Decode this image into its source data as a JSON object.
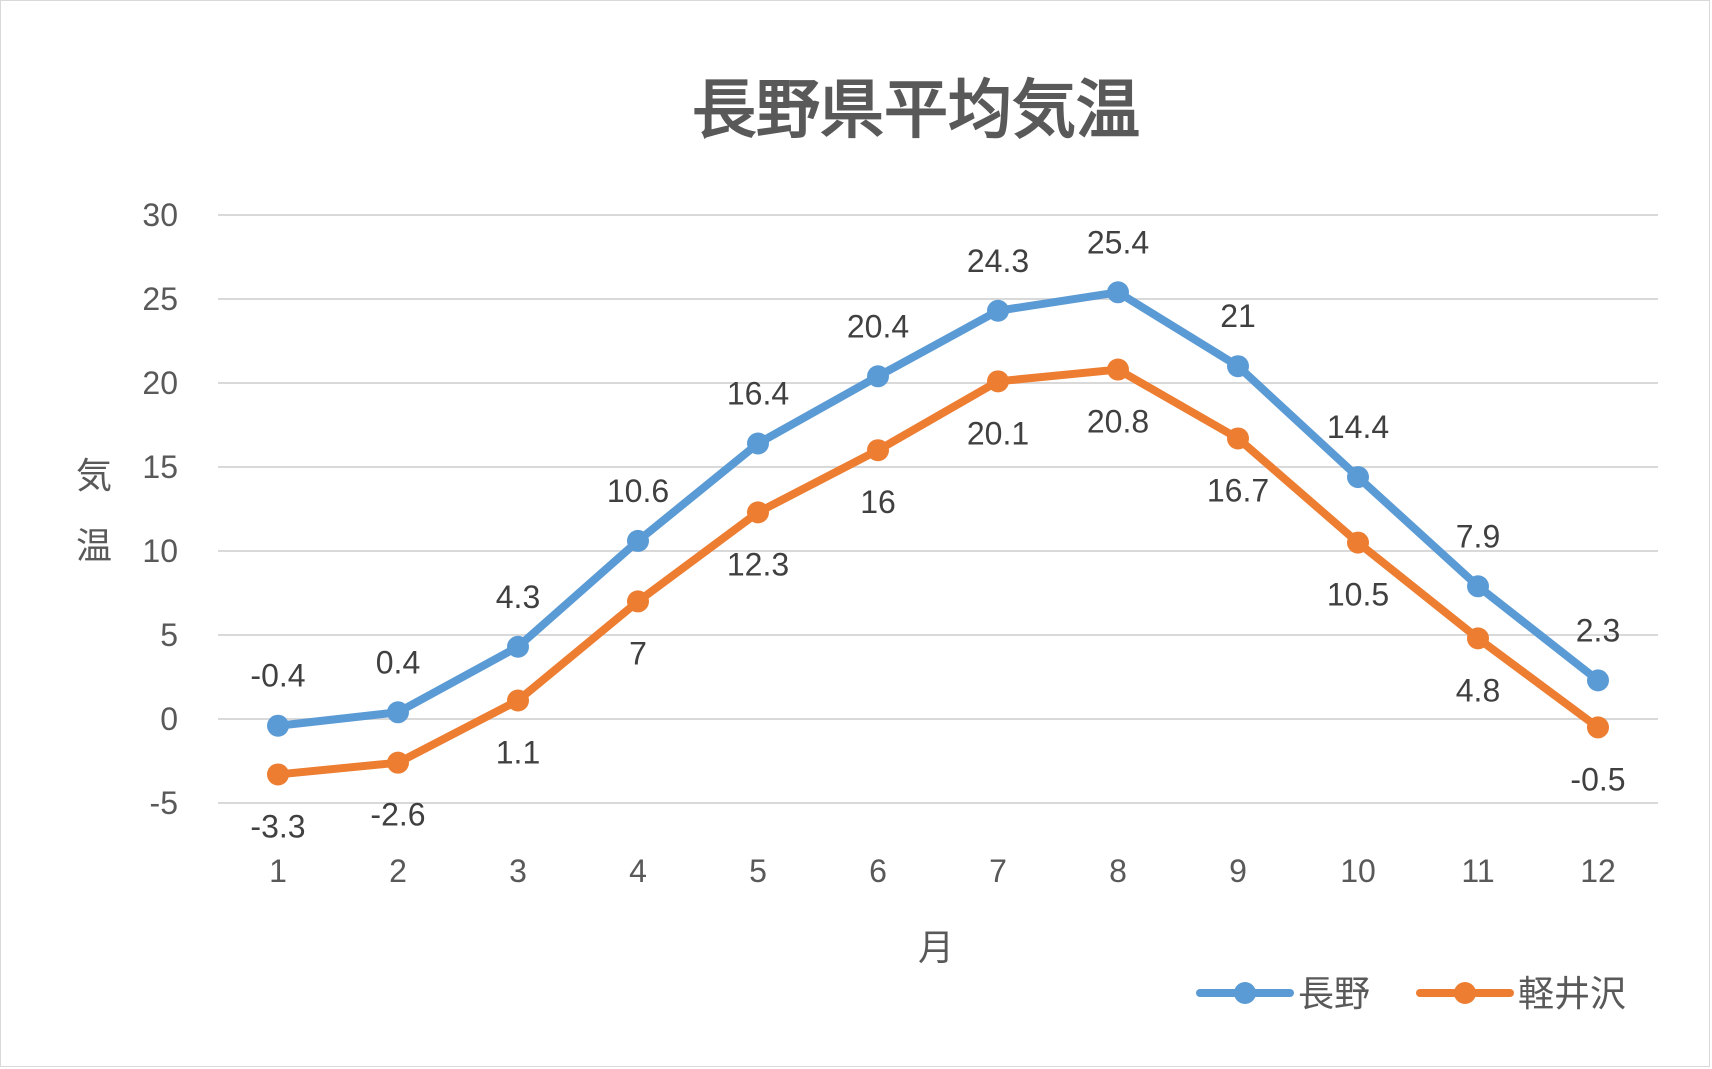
{
  "chart_data": {
    "type": "line",
    "title": "長野県平均気温",
    "xlabel": "月",
    "ylabel": "気温",
    "categories": [
      "1",
      "2",
      "3",
      "4",
      "5",
      "6",
      "7",
      "8",
      "9",
      "10",
      "11",
      "12"
    ],
    "ylim": [
      -5,
      30
    ],
    "yticks": [
      "-5",
      "0",
      "5",
      "10",
      "15",
      "20",
      "25",
      "30"
    ],
    "grid": true,
    "legend_position": "bottom-right",
    "series": [
      {
        "name": "長野",
        "color": "#5b9bd5",
        "values": [
          -0.4,
          0.4,
          4.3,
          10.6,
          16.4,
          20.4,
          24.3,
          25.4,
          21,
          14.4,
          7.9,
          2.3
        ],
        "labels": [
          "-0.4",
          "0.4",
          "4.3",
          "10.6",
          "16.4",
          "20.4",
          "24.3",
          "25.4",
          "21",
          "14.4",
          "7.9",
          "2.3"
        ],
        "label_position": "above"
      },
      {
        "name": "軽井沢",
        "color": "#ed7d31",
        "values": [
          -3.3,
          -2.6,
          1.1,
          7,
          12.3,
          16,
          20.1,
          20.8,
          16.7,
          10.5,
          4.8,
          -0.5
        ],
        "labels": [
          "-3.3",
          "-2.6",
          "1.1",
          "7",
          "12.3",
          "16",
          "20.1",
          "20.8",
          "16.7",
          "10.5",
          "4.8",
          "-0.5"
        ],
        "label_position": "below"
      }
    ]
  }
}
